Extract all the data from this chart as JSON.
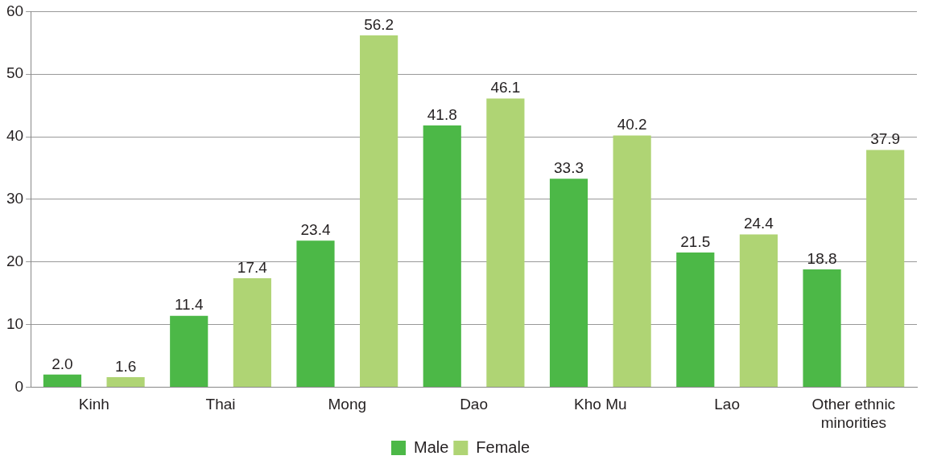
{
  "chart_data": {
    "type": "bar",
    "categories": [
      "Kinh",
      "Thai",
      "Mong",
      "Dao",
      "Kho Mu",
      "Lao",
      "Other ethnic minorities"
    ],
    "series": [
      {
        "name": "Male",
        "color": "#4cb847",
        "values": [
          2.0,
          11.4,
          23.4,
          41.8,
          33.3,
          21.5,
          18.8
        ],
        "value_labels": [
          "2.0",
          "11.4",
          "23.4",
          "41.8",
          "33.3",
          "21.5",
          "18.8"
        ]
      },
      {
        "name": "Female",
        "color": "#afd474",
        "values": [
          1.6,
          17.4,
          56.2,
          46.1,
          40.2,
          24.4,
          37.9
        ],
        "value_labels": [
          "1.6",
          "17.4",
          "56.2",
          "46.1",
          "40.2",
          "24.4",
          "37.9"
        ]
      }
    ],
    "ylim": [
      0,
      60
    ],
    "yticks": [
      0,
      10,
      20,
      30,
      40,
      50,
      60
    ],
    "grid": "y",
    "legend": "bottom"
  }
}
